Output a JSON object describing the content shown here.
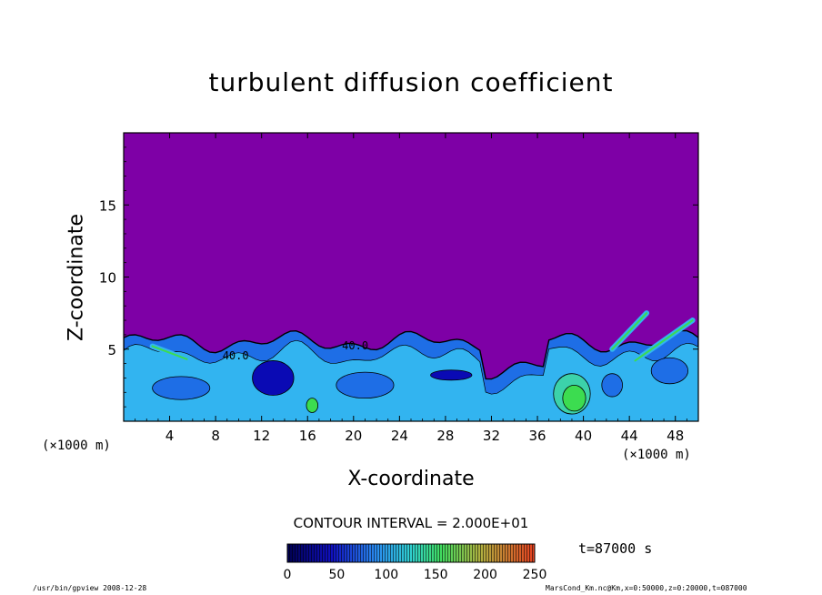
{
  "chart_data": {
    "type": "heatmap",
    "title": "turbulent diffusion coefficient",
    "xlabel": "X-coordinate",
    "ylabel": "Z-coordinate",
    "x_unit": "(×1000 m)",
    "x_ticks": [
      4,
      8,
      12,
      16,
      20,
      24,
      28,
      32,
      36,
      40,
      44,
      48
    ],
    "y_ticks": [
      5,
      10,
      15
    ],
    "xlim": [
      0,
      50
    ],
    "ylim": [
      0,
      20
    ],
    "contour_interval": "CONTOUR INTERVAL = 2.000E+01",
    "contour_labels": [
      "40.0",
      "40.0"
    ],
    "colorbar": {
      "ticks": [
        0,
        50,
        100,
        150,
        200,
        250
      ],
      "range": [
        0,
        250
      ]
    },
    "background_value": 0,
    "turbulent_layer_top_km": 5.5,
    "time_label": "t=87000 s"
  },
  "colors": {
    "background_field": "#7e00a6",
    "low": "#0a0ab4",
    "mid_low": "#1e6ee6",
    "mid": "#32b4f0",
    "mid_high": "#3cd2aa",
    "high": "#3cdc50",
    "very_high": "#e6501e"
  },
  "footer": {
    "left": "/usr/bin/gpview   2008-12-28",
    "right": "MarsCond_Km.nc@Km,x=0:50000,z=0:20000,t=087000"
  }
}
